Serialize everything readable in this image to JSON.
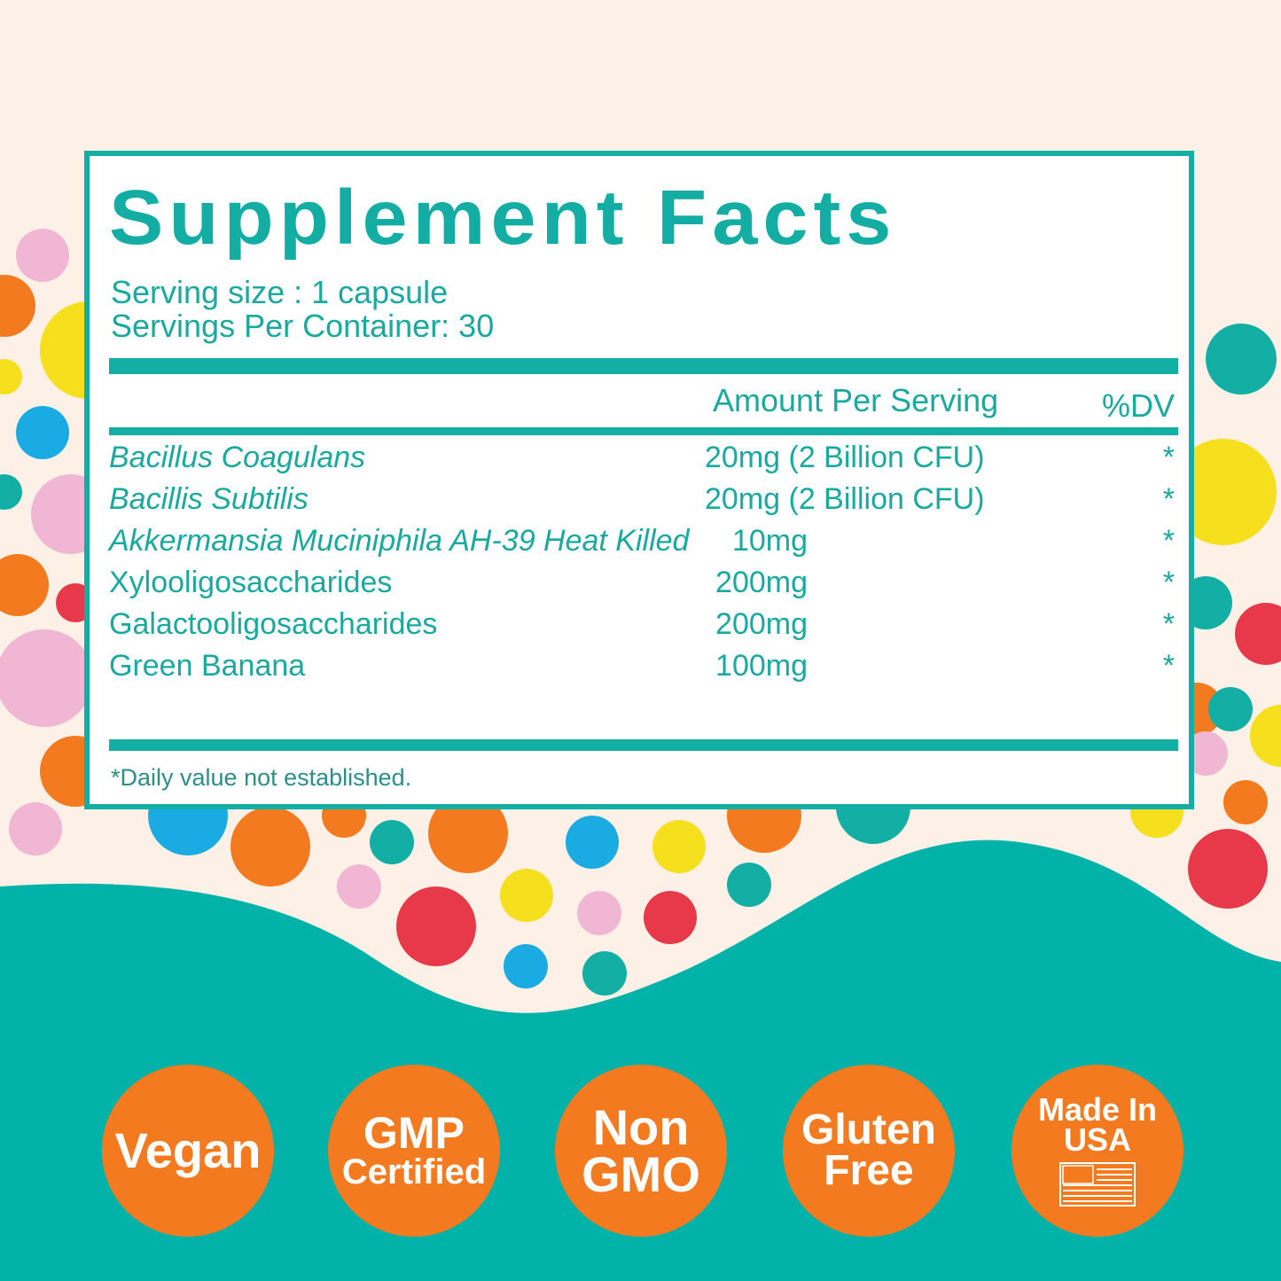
{
  "title": "Supplement Facts",
  "serving_size": "Serving size : 1 capsule",
  "servings_per_container": "Servings Per Container: 30",
  "header": {
    "amount": "Amount Per Serving",
    "dv": "%DV"
  },
  "rows": [
    {
      "name": "Bacillus Coagulans",
      "amount": "20mg (2 Billion CFU)",
      "dv": "*"
    },
    {
      "name": "Bacillis Subtilis",
      "amount": "20mg (2 Billion CFU)",
      "dv": "*"
    },
    {
      "name": "Akkermansia Muciniphila AH-39 Heat Killed",
      "amount": "10mg",
      "dv": "*"
    },
    {
      "name": "Xylooligosaccharides",
      "amount": "200mg",
      "dv": "*"
    },
    {
      "name": "Galactooligosaccharides",
      "amount": "200mg",
      "dv": "*"
    },
    {
      "name": "Green Banana",
      "amount": "100mg",
      "dv": "*"
    }
  ],
  "footnote": "*Daily value not established.",
  "badges": [
    {
      "lines": [
        "Vegan"
      ]
    },
    {
      "lines": [
        "GMP",
        "Certified"
      ]
    },
    {
      "lines": [
        "Non",
        "GMO"
      ]
    },
    {
      "lines": [
        "Gluten",
        "Free"
      ]
    },
    {
      "lines": [
        "Made In",
        "USA"
      ]
    }
  ]
}
